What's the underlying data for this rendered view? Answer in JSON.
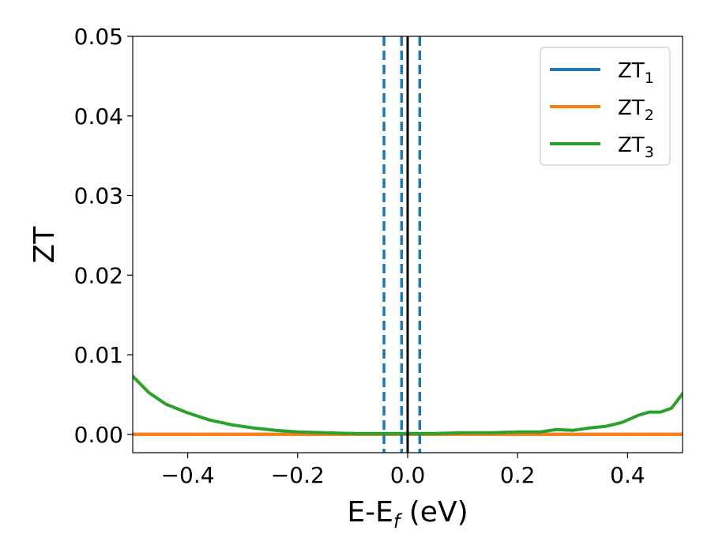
{
  "chart_data": {
    "type": "line",
    "xlabel": {
      "main": "E-E",
      "sub": "f",
      "suffix": " (eV)"
    },
    "ylabel": "ZT",
    "xlim": [
      -0.5,
      0.5
    ],
    "ylim": [
      -0.0023,
      0.05
    ],
    "x_ticks": [
      -0.4,
      -0.2,
      0.0,
      0.2,
      0.4
    ],
    "x_tick_labels": [
      "−0.4",
      "−0.2",
      "0.0",
      "0.2",
      "0.4"
    ],
    "y_ticks": [
      0.0,
      0.01,
      0.02,
      0.03,
      0.04,
      0.05
    ],
    "y_tick_labels": [
      "0.00",
      "0.01",
      "0.02",
      "0.03",
      "0.04",
      "0.05"
    ],
    "grid": false,
    "legend_position": "top-right",
    "series": [
      {
        "name": "ZT",
        "subscript": "1",
        "color": "#1f77b4",
        "x": [
          -0.5,
          0.5
        ],
        "y": [
          0.0,
          0.0
        ]
      },
      {
        "name": "ZT",
        "subscript": "2",
        "color": "#ff7f0e",
        "x": [
          -0.5,
          0.5
        ],
        "y": [
          0.0,
          0.0
        ]
      },
      {
        "name": "ZT",
        "subscript": "3",
        "color": "#2ca02c",
        "x": [
          -0.5,
          -0.47,
          -0.44,
          -0.4,
          -0.36,
          -0.32,
          -0.28,
          -0.24,
          -0.2,
          -0.15,
          -0.1,
          -0.05,
          0.0,
          0.05,
          0.1,
          0.15,
          0.2,
          0.24,
          0.27,
          0.3,
          0.33,
          0.36,
          0.39,
          0.42,
          0.44,
          0.46,
          0.48,
          0.5
        ],
        "y": [
          0.0073,
          0.0052,
          0.0038,
          0.0027,
          0.0018,
          0.0012,
          0.0008,
          0.0005,
          0.0003,
          0.0002,
          0.0001,
          0.0001,
          0.0001,
          0.0001,
          0.0002,
          0.0002,
          0.0003,
          0.0003,
          0.0006,
          0.0005,
          0.0008,
          0.001,
          0.0015,
          0.0024,
          0.0028,
          0.0028,
          0.0033,
          0.0051
        ]
      }
    ],
    "vertical_lines": [
      {
        "x": 0.0,
        "color": "#000000",
        "style": "solid"
      },
      {
        "x": -0.043,
        "color": "#1f77b4",
        "style": "dashed"
      },
      {
        "x": -0.011,
        "color": "#1f77b4",
        "style": "dashed"
      },
      {
        "x": 0.022,
        "color": "#1f77b4",
        "style": "dashed"
      }
    ]
  }
}
